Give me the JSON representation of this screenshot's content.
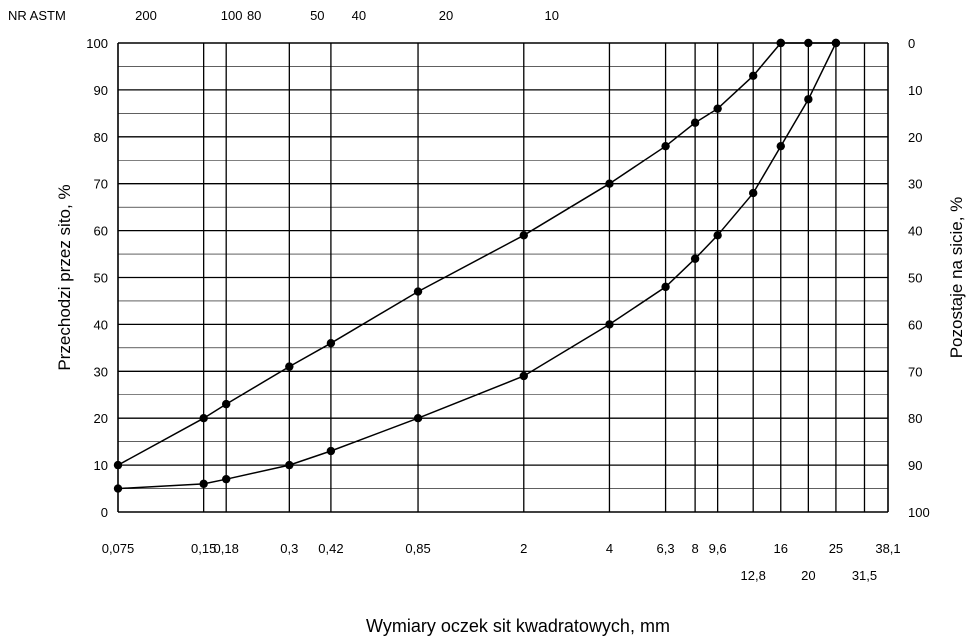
{
  "chart_data": {
    "type": "line",
    "xlabel": "Wymiary oczek sit kwadratowych, mm",
    "ylabel_left": "Przechodzi przez sito, %",
    "ylabel_right": "Pozostaje na sicie, %",
    "astm_label": "NR ASTM",
    "x_scale": "log",
    "ylim": [
      0,
      100
    ],
    "grid": true,
    "y_ticks": [
      0,
      10,
      20,
      30,
      40,
      50,
      60,
      70,
      80,
      90,
      100
    ],
    "y_ticks_right": [
      "100",
      "90",
      "80",
      "70",
      "60",
      "50",
      "40",
      "30",
      "20",
      "10",
      "0"
    ],
    "sieves": [
      {
        "size": 0.075,
        "label": "0,075",
        "row": 1
      },
      {
        "size": 0.15,
        "label": "0,15",
        "row": 1
      },
      {
        "size": 0.18,
        "label": "0,18",
        "row": 1
      },
      {
        "size": 0.3,
        "label": "0,3",
        "row": 1
      },
      {
        "size": 0.42,
        "label": "0,42",
        "row": 1
      },
      {
        "size": 0.85,
        "label": "0,85",
        "row": 1
      },
      {
        "size": 2,
        "label": "2",
        "row": 1
      },
      {
        "size": 4,
        "label": "4",
        "row": 1
      },
      {
        "size": 6.3,
        "label": "6,3",
        "row": 1
      },
      {
        "size": 8,
        "label": "8",
        "row": 1
      },
      {
        "size": 9.6,
        "label": "9,6",
        "row": 1
      },
      {
        "size": 12.8,
        "label": "12,8",
        "row": 2
      },
      {
        "size": 16,
        "label": "16",
        "row": 1
      },
      {
        "size": 20,
        "label": "20",
        "row": 2
      },
      {
        "size": 25,
        "label": "25",
        "row": 1
      },
      {
        "size": 31.5,
        "label": "31,5",
        "row": 2
      },
      {
        "size": 38.1,
        "label": "38,1",
        "row": 1
      }
    ],
    "astm": [
      {
        "label": "200",
        "size": 0.075
      },
      {
        "label": "100",
        "size": 0.15
      },
      {
        "label": "80",
        "size": 0.18
      },
      {
        "label": "50",
        "size": 0.3
      },
      {
        "label": "40",
        "size": 0.42
      },
      {
        "label": "20",
        "size": 0.85
      },
      {
        "label": "10",
        "size": 2
      }
    ],
    "series": [
      {
        "x": [
          0.075,
          0.15,
          0.18,
          0.3,
          0.42,
          0.85,
          2,
          4,
          6.3,
          8,
          9.6,
          12.8,
          16
        ],
        "y": [
          10,
          20,
          23,
          31,
          36,
          47,
          59,
          70,
          78,
          83,
          86,
          93,
          100
        ]
      },
      {
        "x": [
          0.075,
          0.15,
          0.18,
          0.3,
          0.42,
          0.85,
          2,
          4,
          6.3,
          8,
          9.6,
          12.8,
          16,
          20,
          25
        ],
        "y": [
          5,
          6,
          7,
          10,
          13,
          20,
          29,
          40,
          48,
          54,
          59,
          68,
          78,
          88,
          100
        ]
      },
      {
        "x": [
          16,
          20,
          25
        ],
        "y": [
          100,
          100,
          100
        ]
      }
    ]
  }
}
